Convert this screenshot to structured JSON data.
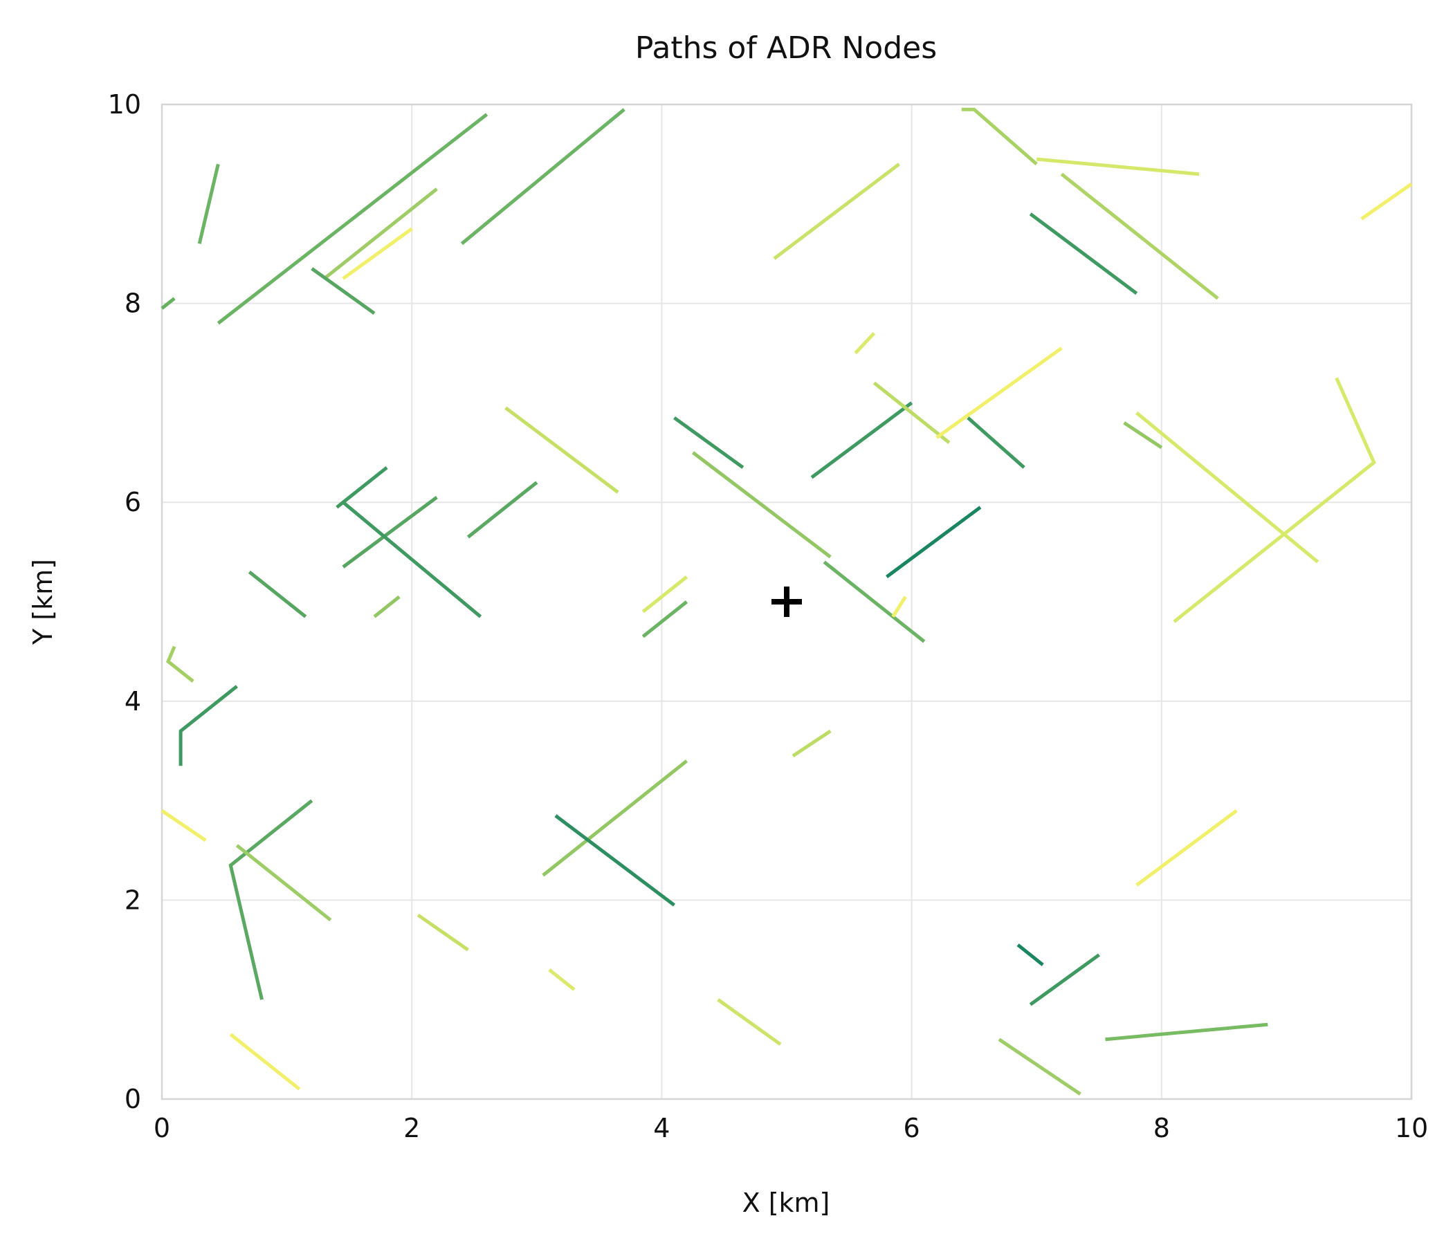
{
  "chart_data": {
    "type": "line",
    "title": "Paths of ADR Nodes",
    "xlabel": "X [km]",
    "ylabel": "Y [km]",
    "xlim": [
      0,
      10
    ],
    "ylim": [
      0,
      10
    ],
    "xticks": [
      "0",
      "2",
      "4",
      "6",
      "8",
      "10"
    ],
    "yticks": [
      "0",
      "2",
      "4",
      "6",
      "8",
      "10"
    ],
    "grid": true,
    "legend": "none",
    "marker": {
      "symbol": "+",
      "x": 5.0,
      "y": 5.0,
      "color": "#000000"
    },
    "series": [
      {
        "color": "#6bb463",
        "points": [
          [
            0.3,
            8.6
          ],
          [
            0.45,
            9.4
          ]
        ]
      },
      {
        "color": "#66b15f",
        "points": [
          [
            0.0,
            7.95
          ],
          [
            0.1,
            8.05
          ]
        ]
      },
      {
        "color": "#6bb463",
        "points": [
          [
            0.45,
            7.8
          ],
          [
            2.6,
            9.9
          ]
        ]
      },
      {
        "color": "#9ecc66",
        "points": [
          [
            1.3,
            8.25
          ],
          [
            2.2,
            9.15
          ]
        ]
      },
      {
        "color": "#f2f06a",
        "points": [
          [
            1.45,
            8.25
          ],
          [
            2.0,
            8.75
          ]
        ]
      },
      {
        "color": "#56a561",
        "points": [
          [
            1.2,
            8.35
          ],
          [
            1.7,
            7.9
          ]
        ]
      },
      {
        "color": "#6bb463",
        "points": [
          [
            2.4,
            8.6
          ],
          [
            3.7,
            9.95
          ]
        ]
      },
      {
        "color": "#c9e269",
        "points": [
          [
            4.9,
            8.45
          ],
          [
            5.9,
            9.4
          ]
        ]
      },
      {
        "color": "#a9d264",
        "points": [
          [
            6.4,
            9.95
          ],
          [
            6.5,
            9.95
          ],
          [
            7.0,
            9.4
          ]
        ]
      },
      {
        "color": "#d6e86a",
        "points": [
          [
            7.0,
            9.45
          ],
          [
            8.3,
            9.3
          ]
        ]
      },
      {
        "color": "#add465",
        "points": [
          [
            7.2,
            9.3
          ],
          [
            8.45,
            8.05
          ]
        ]
      },
      {
        "color": "#3f9a62",
        "points": [
          [
            6.95,
            8.9
          ],
          [
            7.8,
            8.1
          ]
        ]
      },
      {
        "color": "#f2f06a",
        "points": [
          [
            9.6,
            8.85
          ],
          [
            10.0,
            9.2
          ]
        ]
      },
      {
        "color": "#dbea6c",
        "points": [
          [
            5.55,
            7.5
          ],
          [
            5.7,
            7.7
          ]
        ]
      },
      {
        "color": "#c6e066",
        "points": [
          [
            2.75,
            6.95
          ],
          [
            3.65,
            6.1
          ]
        ]
      },
      {
        "color": "#3f9a62",
        "points": [
          [
            4.1,
            6.85
          ],
          [
            4.65,
            6.35
          ]
        ]
      },
      {
        "color": "#93c764",
        "points": [
          [
            4.25,
            6.5
          ],
          [
            5.35,
            5.45
          ]
        ]
      },
      {
        "color": "#3f9a62",
        "points": [
          [
            5.2,
            6.25
          ],
          [
            6.0,
            7.0
          ]
        ]
      },
      {
        "color": "#bcdc65",
        "points": [
          [
            5.7,
            7.2
          ],
          [
            6.3,
            6.6
          ]
        ]
      },
      {
        "color": "#f2f06a",
        "points": [
          [
            6.2,
            6.65
          ],
          [
            7.2,
            7.55
          ]
        ]
      },
      {
        "color": "#3f9a62",
        "points": [
          [
            6.45,
            6.85
          ],
          [
            6.9,
            6.35
          ]
        ]
      },
      {
        "color": "#93c764",
        "points": [
          [
            7.7,
            6.8
          ],
          [
            8.0,
            6.55
          ]
        ]
      },
      {
        "color": "#d7e96a",
        "points": [
          [
            7.8,
            6.9
          ],
          [
            9.25,
            5.4
          ]
        ]
      },
      {
        "color": "#d7e96a",
        "points": [
          [
            9.4,
            7.25
          ],
          [
            9.7,
            6.4
          ],
          [
            8.1,
            4.8
          ]
        ]
      },
      {
        "color": "#3f9a62",
        "points": [
          [
            1.4,
            5.95
          ],
          [
            1.8,
            6.35
          ]
        ]
      },
      {
        "color": "#56a561",
        "points": [
          [
            1.45,
            5.35
          ],
          [
            2.2,
            6.05
          ]
        ]
      },
      {
        "color": "#5aa861",
        "points": [
          [
            2.45,
            5.65
          ],
          [
            3.0,
            6.2
          ]
        ]
      },
      {
        "color": "#3f9a62",
        "points": [
          [
            1.45,
            6.0
          ],
          [
            2.55,
            4.85
          ]
        ]
      },
      {
        "color": "#56a561",
        "points": [
          [
            0.7,
            5.3
          ],
          [
            1.15,
            4.85
          ]
        ]
      },
      {
        "color": "#93c764",
        "points": [
          [
            1.7,
            4.85
          ],
          [
            1.9,
            5.05
          ]
        ]
      },
      {
        "color": "#d7e96a",
        "points": [
          [
            3.85,
            4.9
          ],
          [
            4.2,
            5.25
          ]
        ]
      },
      {
        "color": "#6bb463",
        "points": [
          [
            3.85,
            4.65
          ],
          [
            4.2,
            5.0
          ]
        ]
      },
      {
        "color": "#6bb463",
        "points": [
          [
            5.3,
            5.4
          ],
          [
            6.1,
            4.6
          ]
        ]
      },
      {
        "color": "#1a8661",
        "points": [
          [
            5.8,
            5.25
          ],
          [
            6.55,
            5.95
          ]
        ]
      },
      {
        "color": "#f2f06a",
        "points": [
          [
            5.85,
            4.85
          ],
          [
            5.95,
            5.05
          ]
        ]
      },
      {
        "color": "#a3cf64",
        "points": [
          [
            0.1,
            4.55
          ],
          [
            0.05,
            4.4
          ],
          [
            0.25,
            4.2
          ]
        ]
      },
      {
        "color": "#3f9a62",
        "points": [
          [
            0.15,
            3.35
          ],
          [
            0.15,
            3.7
          ],
          [
            0.6,
            4.15
          ]
        ]
      },
      {
        "color": "#bcdc65",
        "points": [
          [
            5.05,
            3.45
          ],
          [
            5.35,
            3.7
          ]
        ]
      },
      {
        "color": "#f2f06a",
        "points": [
          [
            0.0,
            2.9
          ],
          [
            0.35,
            2.6
          ]
        ]
      },
      {
        "color": "#5aa861",
        "points": [
          [
            0.8,
            1.0
          ],
          [
            0.55,
            2.35
          ],
          [
            1.2,
            3.0
          ]
        ]
      },
      {
        "color": "#9ecc66",
        "points": [
          [
            0.6,
            2.55
          ],
          [
            1.35,
            1.8
          ]
        ]
      },
      {
        "color": "#93c764",
        "points": [
          [
            3.05,
            2.25
          ],
          [
            4.2,
            3.4
          ]
        ]
      },
      {
        "color": "#2d8e62",
        "points": [
          [
            3.15,
            2.85
          ],
          [
            4.1,
            1.95
          ]
        ]
      },
      {
        "color": "#c6e066",
        "points": [
          [
            2.05,
            1.85
          ],
          [
            2.45,
            1.5
          ]
        ]
      },
      {
        "color": "#f2f06a",
        "points": [
          [
            7.8,
            2.15
          ],
          [
            8.6,
            2.9
          ]
        ]
      },
      {
        "color": "#dbea6c",
        "points": [
          [
            3.1,
            1.3
          ],
          [
            3.3,
            1.1
          ]
        ]
      },
      {
        "color": "#cde46a",
        "points": [
          [
            4.45,
            1.0
          ],
          [
            4.95,
            0.55
          ]
        ]
      },
      {
        "color": "#f2f06a",
        "points": [
          [
            0.55,
            0.65
          ],
          [
            1.1,
            0.1
          ]
        ]
      },
      {
        "color": "#1a8661",
        "points": [
          [
            6.85,
            1.55
          ],
          [
            7.05,
            1.35
          ]
        ]
      },
      {
        "color": "#3f9a62",
        "points": [
          [
            6.95,
            0.95
          ],
          [
            7.5,
            1.45
          ]
        ]
      },
      {
        "color": "#9ecc66",
        "points": [
          [
            6.7,
            0.6
          ],
          [
            7.35,
            0.05
          ]
        ]
      },
      {
        "color": "#77bb63",
        "points": [
          [
            7.55,
            0.6
          ],
          [
            8.85,
            0.75
          ]
        ]
      }
    ]
  }
}
